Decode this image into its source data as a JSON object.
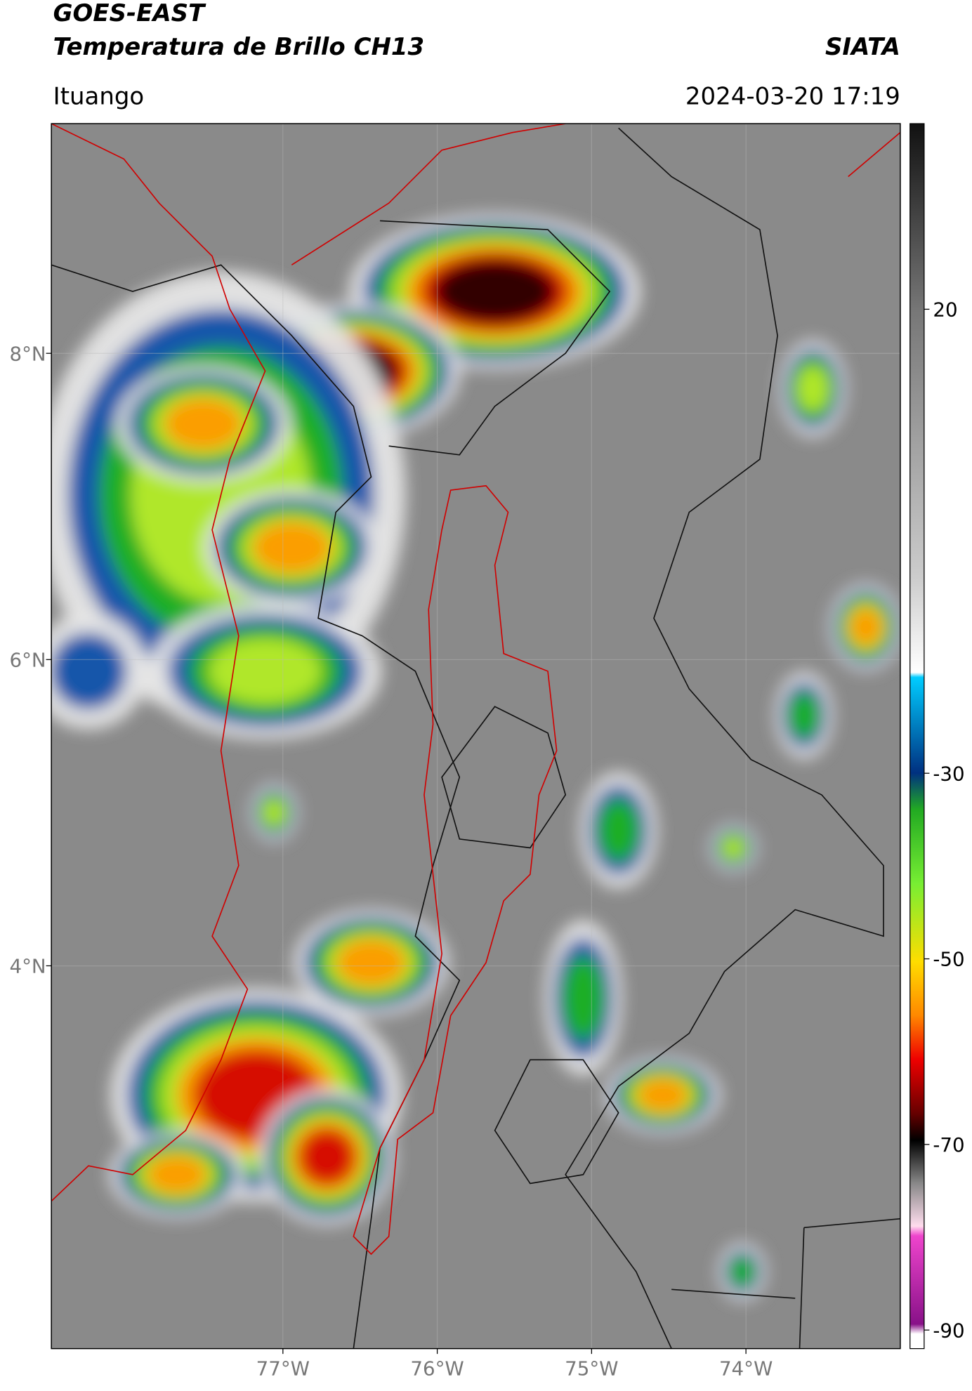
{
  "header": {
    "title": "GOES-EAST",
    "subtitle": "Temperatura de Brillo CH13",
    "source": "SIATA",
    "location": "Ituango",
    "datetime": "2024-03-20 17:19"
  },
  "map": {
    "xlim": [
      -78.5,
      -73.0
    ],
    "ylim": [
      1.5,
      9.5
    ],
    "xticks": [
      {
        "value": -77,
        "label": "77°W"
      },
      {
        "value": -76,
        "label": "76°W"
      },
      {
        "value": -75,
        "label": "75°W"
      },
      {
        "value": -74,
        "label": "74°W"
      }
    ],
    "yticks": [
      {
        "value": 4,
        "label": "4°N"
      },
      {
        "value": 6,
        "label": "6°N"
      },
      {
        "value": 8,
        "label": "8°N"
      }
    ]
  },
  "colorbar": {
    "lim": [
      -92,
      40
    ],
    "ticks": [
      20,
      -30,
      -50,
      -70,
      -90
    ]
  }
}
